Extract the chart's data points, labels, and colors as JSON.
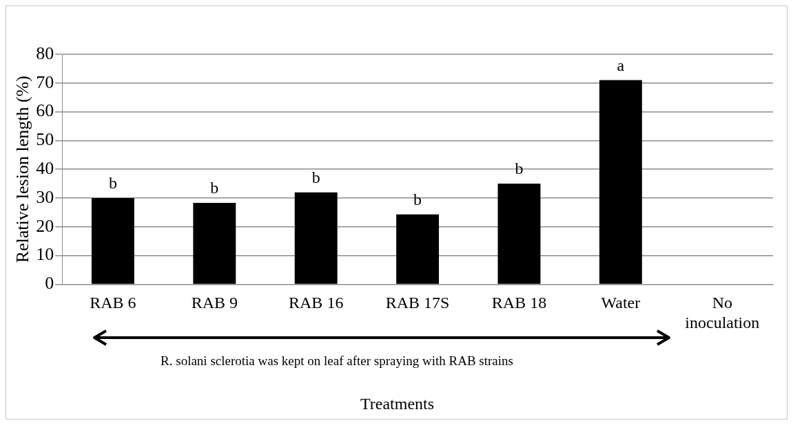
{
  "chart_data": {
    "type": "bar",
    "ylabel": "Relative lesion length (%)",
    "xlabel": "Treatments",
    "categories": [
      "RAB 6",
      "RAB 9",
      "RAB 16",
      "RAB 17S",
      "RAB 18",
      "Water",
      "No inoculation"
    ],
    "values": [
      30,
      28.3,
      32,
      24.3,
      35,
      71,
      0
    ],
    "color": "#000000",
    "ylim": [
      0,
      80
    ],
    "yticks": [
      0,
      10,
      20,
      30,
      40,
      50,
      60,
      70,
      80
    ],
    "grid": "y",
    "legend": false,
    "annotations": [
      {
        "text": "b",
        "x": "RAB 6",
        "y": 30
      },
      {
        "text": "b",
        "x": "RAB 9",
        "y": 28.3
      },
      {
        "text": "b",
        "x": "RAB 16",
        "y": 32
      },
      {
        "text": "b",
        "x": "RAB 17S",
        "y": 24.3
      },
      {
        "text": "b",
        "x": "RAB 18",
        "y": 35
      },
      {
        "text": "a",
        "x": "Water",
        "y": 71
      },
      "R. solani sclerotia was kept on leaf after spraying with RAB strains"
    ]
  }
}
